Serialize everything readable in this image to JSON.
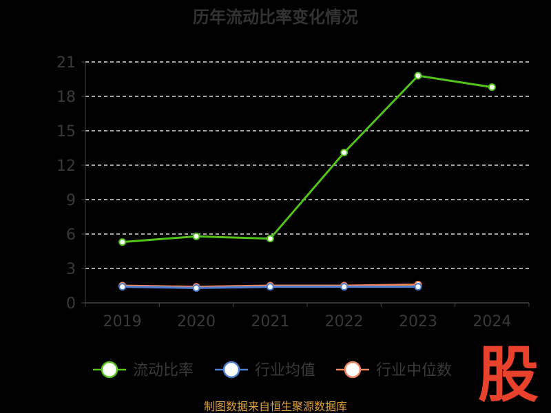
{
  "chart_data": {
    "type": "line",
    "title": "历年流动比率变化情况",
    "categories": [
      "2019",
      "2020",
      "2021",
      "2022",
      "2023",
      "2024"
    ],
    "ylim": [
      0,
      21
    ],
    "yticks": [
      0,
      3,
      6,
      9,
      12,
      15,
      18,
      21
    ],
    "grid": true,
    "legend_position": "bottom",
    "series": [
      {
        "name": "流动比率",
        "color": "#52c41a",
        "values": [
          5.3,
          5.8,
          5.6,
          13.1,
          19.8,
          18.8
        ]
      },
      {
        "name": "行业均值",
        "color": "#4a7fd4",
        "values": [
          1.4,
          1.3,
          1.4,
          1.4,
          1.4,
          null
        ]
      },
      {
        "name": "行业中位数",
        "color": "#f0845c",
        "values": [
          1.5,
          1.4,
          1.5,
          1.5,
          1.6,
          null
        ]
      }
    ]
  },
  "footer": {
    "source": "制图数据来自恒生聚源数据库"
  },
  "watermark": {
    "text": "股"
  }
}
